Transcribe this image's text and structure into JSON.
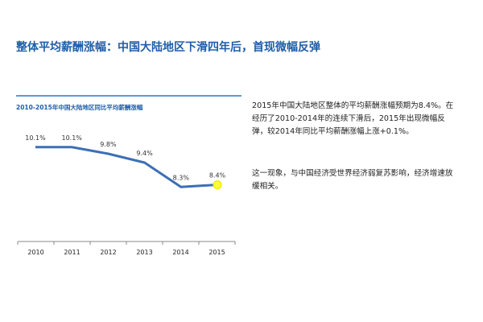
{
  "page": {
    "title": "整体平均薪酬涨幅：中国大陆地区下滑四年后，首现微幅反弹"
  },
  "sidebar": {
    "paragraph1": "2015年中国大陆地区整体的平均薪酬涨幅预期为8.4%。在经历了2010-2014年的连续下滑后，2015年出现微幅反弹，较2014年同比平均薪酬涨幅上涨+0.1%。",
    "paragraph2": "这一现象，与中国经济受世界经济弱复苏影响，经济增速放缓相关。"
  },
  "chart_data": {
    "type": "line",
    "title": "2010-2015年中国大陆地区同比平均薪酬涨幅",
    "categories": [
      "2010",
      "2011",
      "2012",
      "2013",
      "2014",
      "2015"
    ],
    "values": [
      10.1,
      10.1,
      9.8,
      9.4,
      8.3,
      8.4
    ],
    "value_labels": [
      "10.1%",
      "10.1%",
      "9.8%",
      "9.4%",
      "8.3%",
      "8.4%"
    ],
    "xlabel": "",
    "ylabel": "",
    "ylim": [
      7.0,
      11.0
    ],
    "grid": false,
    "legend": "none",
    "line_color": "#3D6FB5",
    "highlight": {
      "index": 5,
      "color": "#FFFF33"
    }
  }
}
